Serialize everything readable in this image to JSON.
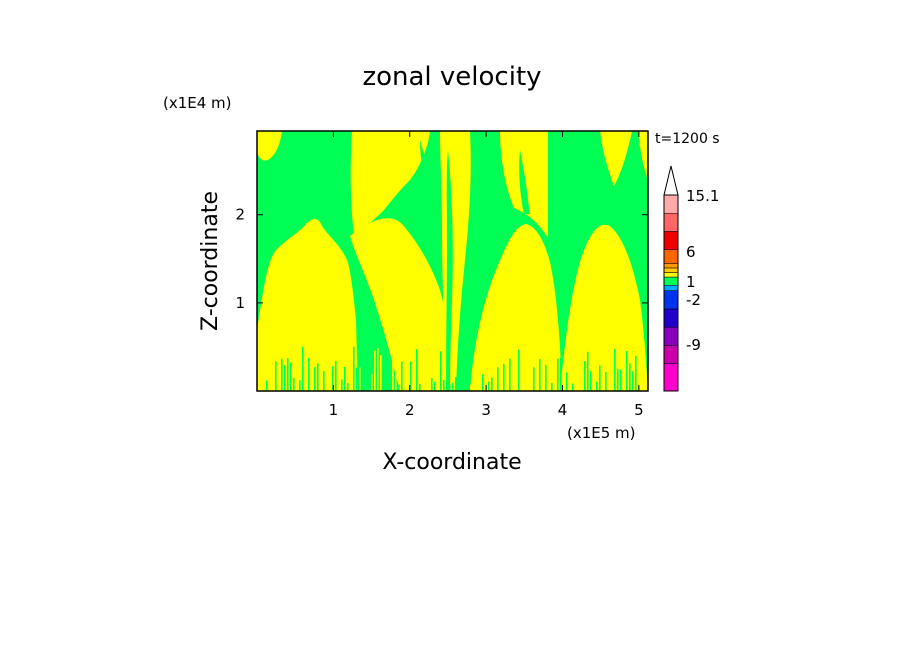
{
  "chart_data": {
    "type": "heatmap",
    "title": "zonal velocity",
    "xlabel": "X-coordinate",
    "ylabel": "Z-coordinate",
    "x_unit": "(x1E5 m)",
    "y_unit": "(x1E4 m)",
    "time_label": "t=1200 s",
    "xlim": [
      0,
      5.12
    ],
    "ylim": [
      0,
      2.95
    ],
    "x_ticks": [
      1,
      2,
      3,
      4,
      5
    ],
    "y_ticks": [
      1,
      2
    ],
    "colorbar": {
      "colors": [
        "#ff00cc",
        "#cc00aa",
        "#8800bb",
        "#2200cc",
        "#0033ee",
        "#00aaff",
        "#00ff55",
        "#ffff00",
        "#ffcc00",
        "#ff9900",
        "#ff6600",
        "#ee0000",
        "#ff6666",
        "#ffaaaa"
      ],
      "labels": [
        "15.1",
        "6",
        "1",
        "-2",
        "-9"
      ]
    },
    "colors": {
      "positive": "#ffff00",
      "negative": "#00ff55"
    }
  }
}
